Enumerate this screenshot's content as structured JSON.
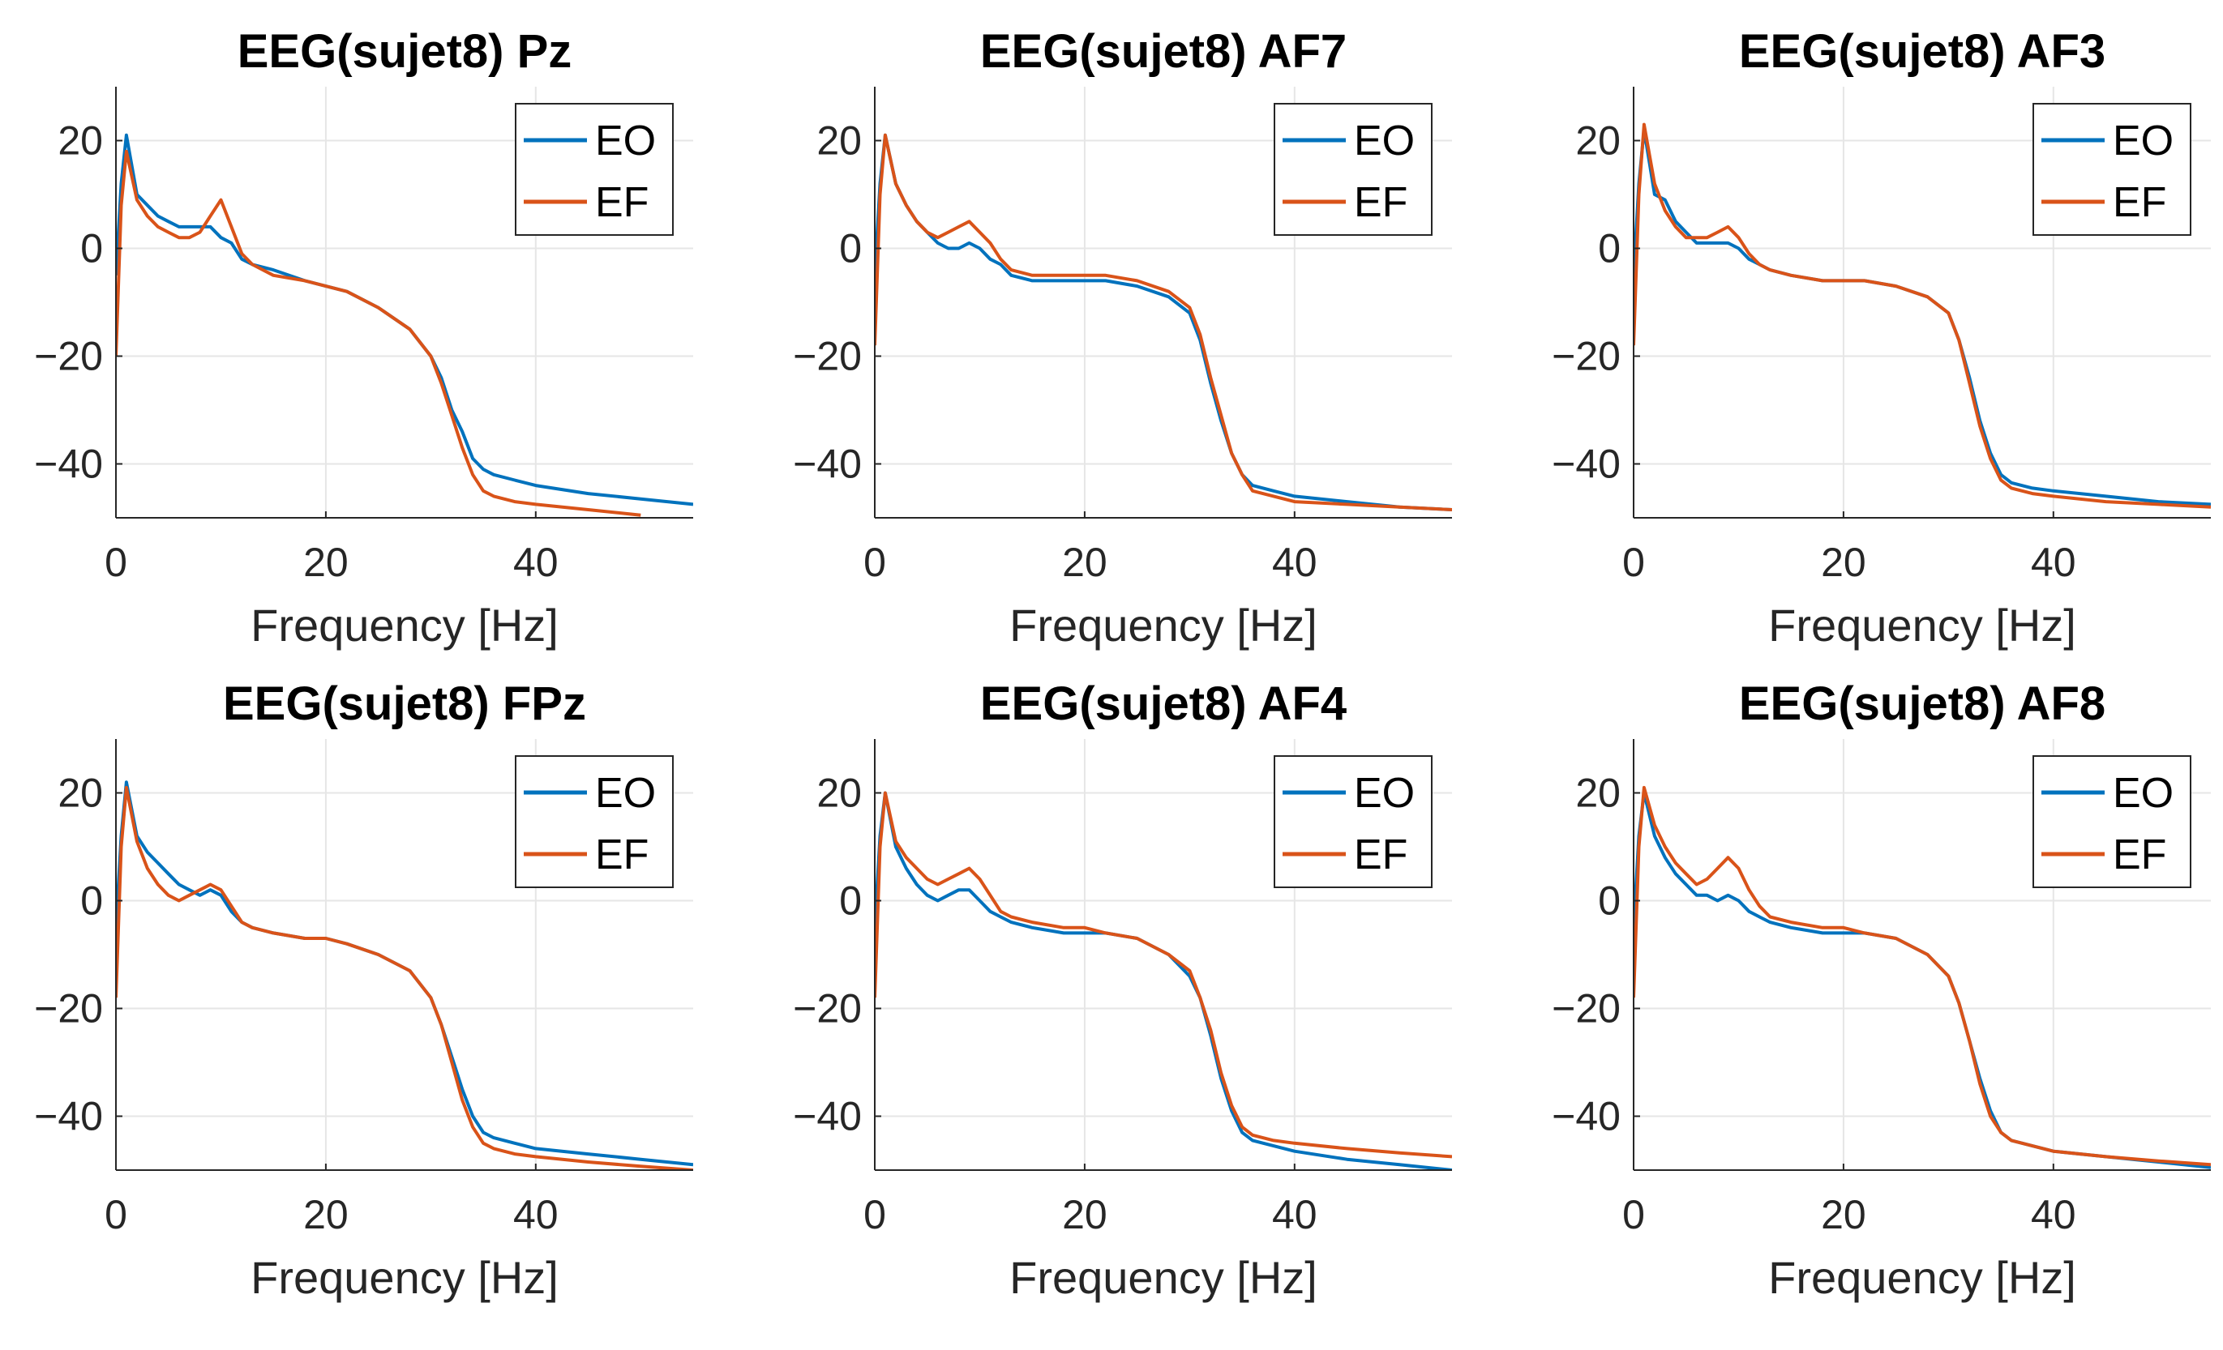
{
  "colors": {
    "EO": "#0072BD",
    "EF": "#D95319",
    "grid": "#e6e6e6",
    "axis": "#262626"
  },
  "chart_data": [
    {
      "type": "line",
      "title": "EEG(sujet8) Pz",
      "xlabel": "Frequency [Hz]",
      "ylabel": "",
      "xlim": [
        0,
        55
      ],
      "ylim": [
        -50,
        30
      ],
      "xticks": [
        "0",
        "20",
        "40"
      ],
      "xtick_values": [
        0,
        20,
        40
      ],
      "yticks": [
        "20",
        "0",
        "−20",
        "−40"
      ],
      "ytick_values": [
        20,
        0,
        -20,
        -40
      ],
      "grid": true,
      "legend_position": "top-right",
      "series": [
        {
          "name": "EO",
          "x": [
            0,
            0.5,
            1,
            2,
            3,
            4,
            5,
            6,
            7,
            8,
            9,
            10,
            11,
            12,
            13,
            15,
            18,
            20,
            22,
            25,
            28,
            30,
            31,
            32,
            33,
            34,
            35,
            36,
            38,
            40,
            45,
            50,
            55
          ],
          "y": [
            -5,
            12,
            21,
            10,
            8,
            6,
            5,
            4,
            4,
            4,
            4,
            2,
            1,
            -2,
            -3,
            -4,
            -6,
            -7,
            -8,
            -11,
            -15,
            -20,
            -24,
            -30,
            -34,
            -39,
            -41,
            -42,
            -43,
            -44,
            -45.5,
            -46.5,
            -47.5
          ]
        },
        {
          "name": "EF",
          "x": [
            0,
            0.5,
            1,
            2,
            3,
            4,
            5,
            6,
            7,
            8,
            9,
            10,
            11,
            12,
            13,
            15,
            18,
            20,
            22,
            25,
            28,
            30,
            31,
            32,
            33,
            34,
            35,
            36,
            38,
            40,
            45,
            50
          ],
          "y": [
            -20,
            8,
            18,
            9,
            6,
            4,
            3,
            2,
            2,
            3,
            6,
            9,
            4,
            -1,
            -3,
            -5,
            -6,
            -7,
            -8,
            -11,
            -15,
            -20,
            -25,
            -31,
            -37,
            -42,
            -45,
            -46,
            -47,
            -47.5,
            -48.5,
            -49.5
          ]
        }
      ]
    },
    {
      "type": "line",
      "title": "EEG(sujet8) AF7",
      "xlabel": "Frequency [Hz]",
      "ylabel": "",
      "xlim": [
        0,
        55
      ],
      "ylim": [
        -50,
        30
      ],
      "xticks": [
        "0",
        "20",
        "40"
      ],
      "xtick_values": [
        0,
        20,
        40
      ],
      "yticks": [
        "20",
        "0",
        "−20",
        "−40"
      ],
      "ytick_values": [
        20,
        0,
        -20,
        -40
      ],
      "grid": true,
      "legend_position": "top-right",
      "series": [
        {
          "name": "EO",
          "x": [
            0,
            0.5,
            1,
            2,
            3,
            4,
            5,
            6,
            7,
            8,
            9,
            10,
            11,
            12,
            13,
            15,
            18,
            20,
            22,
            25,
            28,
            30,
            31,
            32,
            33,
            34,
            35,
            36,
            38,
            40,
            45,
            50,
            55
          ],
          "y": [
            -5,
            12,
            21,
            12,
            8,
            5,
            3,
            1,
            0,
            0,
            1,
            0,
            -2,
            -3,
            -5,
            -6,
            -6,
            -6,
            -6,
            -7,
            -9,
            -12,
            -17,
            -25,
            -32,
            -38,
            -42,
            -44,
            -45,
            -46,
            -47,
            -48,
            -48.5
          ]
        },
        {
          "name": "EF",
          "x": [
            0,
            0.5,
            1,
            2,
            3,
            4,
            5,
            6,
            7,
            8,
            9,
            10,
            11,
            12,
            13,
            15,
            18,
            20,
            22,
            25,
            28,
            30,
            31,
            32,
            33,
            34,
            35,
            36,
            38,
            40,
            45,
            50,
            55
          ],
          "y": [
            -18,
            10,
            21,
            12,
            8,
            5,
            3,
            2,
            3,
            4,
            5,
            3,
            1,
            -2,
            -4,
            -5,
            -5,
            -5,
            -5,
            -6,
            -8,
            -11,
            -16,
            -24,
            -31,
            -38,
            -42,
            -45,
            -46,
            -47,
            -47.5,
            -48,
            -48.5
          ]
        }
      ]
    },
    {
      "type": "line",
      "title": "EEG(sujet8) AF3",
      "xlabel": "Frequency [Hz]",
      "ylabel": "",
      "xlim": [
        0,
        55
      ],
      "ylim": [
        -50,
        30
      ],
      "xticks": [
        "0",
        "20",
        "40"
      ],
      "xtick_values": [
        0,
        20,
        40
      ],
      "yticks": [
        "20",
        "0",
        "−20",
        "−40"
      ],
      "ytick_values": [
        20,
        0,
        -20,
        -40
      ],
      "grid": true,
      "legend_position": "top-right",
      "series": [
        {
          "name": "EO",
          "x": [
            0,
            0.5,
            1,
            2,
            3,
            4,
            5,
            6,
            7,
            8,
            9,
            10,
            11,
            12,
            13,
            15,
            18,
            20,
            22,
            25,
            28,
            30,
            31,
            32,
            33,
            34,
            35,
            36,
            38,
            40,
            45,
            50,
            55
          ],
          "y": [
            -5,
            12,
            22,
            10,
            9,
            5,
            3,
            1,
            1,
            1,
            1,
            0,
            -2,
            -3,
            -4,
            -5,
            -6,
            -6,
            -6,
            -7,
            -9,
            -12,
            -17,
            -24,
            -32,
            -38,
            -42,
            -43.5,
            -44.5,
            -45,
            -46,
            -47,
            -47.5
          ]
        },
        {
          "name": "EF",
          "x": [
            0,
            0.5,
            1,
            2,
            3,
            4,
            5,
            6,
            7,
            8,
            9,
            10,
            11,
            12,
            13,
            15,
            18,
            20,
            22,
            25,
            28,
            30,
            31,
            32,
            33,
            34,
            35,
            36,
            38,
            40,
            45,
            50,
            55
          ],
          "y": [
            -18,
            10,
            23,
            12,
            7,
            4,
            2,
            2,
            2,
            3,
            4,
            2,
            -1,
            -3,
            -4,
            -5,
            -6,
            -6,
            -6,
            -7,
            -9,
            -12,
            -17,
            -25,
            -33,
            -39,
            -43,
            -44.5,
            -45.5,
            -46,
            -47,
            -47.5,
            -48
          ]
        }
      ]
    },
    {
      "type": "line",
      "title": "EEG(sujet8) FPz",
      "xlabel": "Frequency [Hz]",
      "ylabel": "",
      "xlim": [
        0,
        55
      ],
      "ylim": [
        -50,
        30
      ],
      "xticks": [
        "0",
        "20",
        "40"
      ],
      "xtick_values": [
        0,
        20,
        40
      ],
      "yticks": [
        "20",
        "0",
        "−20",
        "−40"
      ],
      "ytick_values": [
        20,
        0,
        -20,
        -40
      ],
      "grid": true,
      "legend_position": "top-right",
      "series": [
        {
          "name": "EO",
          "x": [
            0,
            0.5,
            1,
            2,
            3,
            4,
            5,
            6,
            7,
            8,
            9,
            10,
            11,
            12,
            13,
            15,
            18,
            20,
            22,
            25,
            28,
            30,
            31,
            32,
            33,
            34,
            35,
            36,
            38,
            40,
            45,
            50,
            55
          ],
          "y": [
            -5,
            12,
            22,
            12,
            9,
            7,
            5,
            3,
            2,
            1,
            2,
            1,
            -2,
            -4,
            -5,
            -6,
            -7,
            -7,
            -8,
            -10,
            -13,
            -18,
            -23,
            -29,
            -35,
            -40,
            -43,
            -44,
            -45,
            -46,
            -47,
            -48,
            -49
          ]
        },
        {
          "name": "EF",
          "x": [
            0,
            0.5,
            1,
            2,
            3,
            4,
            5,
            6,
            7,
            8,
            9,
            10,
            11,
            12,
            13,
            15,
            18,
            20,
            22,
            25,
            28,
            30,
            31,
            32,
            33,
            34,
            35,
            36,
            38,
            40,
            45,
            50,
            55
          ],
          "y": [
            -18,
            10,
            21,
            11,
            6,
            3,
            1,
            0,
            1,
            2,
            3,
            2,
            -1,
            -4,
            -5,
            -6,
            -7,
            -7,
            -8,
            -10,
            -13,
            -18,
            -23,
            -30,
            -37,
            -42,
            -45,
            -46,
            -47,
            -47.5,
            -48.5,
            -49.3,
            -50
          ]
        }
      ]
    },
    {
      "type": "line",
      "title": "EEG(sujet8) AF4",
      "xlabel": "Frequency [Hz]",
      "ylabel": "",
      "xlim": [
        0,
        55
      ],
      "ylim": [
        -50,
        30
      ],
      "xticks": [
        "0",
        "20",
        "40"
      ],
      "xtick_values": [
        0,
        20,
        40
      ],
      "yticks": [
        "20",
        "0",
        "−20",
        "−40"
      ],
      "ytick_values": [
        20,
        0,
        -20,
        -40
      ],
      "grid": true,
      "legend_position": "top-right",
      "series": [
        {
          "name": "EO",
          "x": [
            0,
            0.5,
            1,
            2,
            3,
            4,
            5,
            6,
            7,
            8,
            9,
            10,
            11,
            12,
            13,
            15,
            18,
            20,
            22,
            25,
            28,
            30,
            31,
            32,
            33,
            34,
            35,
            36,
            38,
            40,
            45,
            50,
            55
          ],
          "y": [
            -5,
            12,
            20,
            10,
            6,
            3,
            1,
            0,
            1,
            2,
            2,
            0,
            -2,
            -3,
            -4,
            -5,
            -6,
            -6,
            -6,
            -7,
            -10,
            -14,
            -18,
            -25,
            -33,
            -39,
            -43,
            -44.5,
            -45.5,
            -46.5,
            -48,
            -49,
            -50
          ]
        },
        {
          "name": "EF",
          "x": [
            0,
            0.5,
            1,
            2,
            3,
            4,
            5,
            6,
            7,
            8,
            9,
            10,
            11,
            12,
            13,
            15,
            18,
            20,
            22,
            25,
            28,
            30,
            31,
            32,
            33,
            34,
            35,
            36,
            38,
            40,
            45,
            50,
            55
          ],
          "y": [
            -18,
            10,
            20,
            11,
            8,
            6,
            4,
            3,
            4,
            5,
            6,
            4,
            1,
            -2,
            -3,
            -4,
            -5,
            -5,
            -6,
            -7,
            -10,
            -13,
            -18,
            -24,
            -32,
            -38,
            -42,
            -43.5,
            -44.5,
            -45,
            -46,
            -46.8,
            -47.5
          ]
        }
      ]
    },
    {
      "type": "line",
      "title": "EEG(sujet8) AF8",
      "xlabel": "Frequency [Hz]",
      "ylabel": "",
      "xlim": [
        0,
        55
      ],
      "ylim": [
        -50,
        30
      ],
      "xticks": [
        "0",
        "20",
        "40"
      ],
      "xtick_values": [
        0,
        20,
        40
      ],
      "yticks": [
        "20",
        "0",
        "−20",
        "−40"
      ],
      "ytick_values": [
        20,
        0,
        -20,
        -40
      ],
      "grid": true,
      "legend_position": "top-right",
      "series": [
        {
          "name": "EO",
          "x": [
            0,
            0.5,
            1,
            2,
            3,
            4,
            5,
            6,
            7,
            8,
            9,
            10,
            11,
            12,
            13,
            15,
            18,
            20,
            22,
            25,
            28,
            30,
            31,
            32,
            33,
            34,
            35,
            36,
            38,
            40,
            45,
            50,
            55
          ],
          "y": [
            -5,
            12,
            20,
            12,
            8,
            5,
            3,
            1,
            1,
            0,
            1,
            0,
            -2,
            -3,
            -4,
            -5,
            -6,
            -6,
            -6,
            -7,
            -10,
            -14,
            -19,
            -26,
            -33,
            -39,
            -43,
            -44.5,
            -45.5,
            -46.5,
            -47.5,
            -48.5,
            -49.5
          ]
        },
        {
          "name": "EF",
          "x": [
            0,
            0.5,
            1,
            2,
            3,
            4,
            5,
            6,
            7,
            8,
            9,
            10,
            11,
            12,
            13,
            15,
            18,
            20,
            22,
            25,
            28,
            30,
            31,
            32,
            33,
            34,
            35,
            36,
            38,
            40,
            45,
            50,
            55
          ],
          "y": [
            -18,
            10,
            21,
            14,
            10,
            7,
            5,
            3,
            4,
            6,
            8,
            6,
            2,
            -1,
            -3,
            -4,
            -5,
            -5,
            -6,
            -7,
            -10,
            -14,
            -19,
            -26,
            -34,
            -40,
            -43,
            -44.5,
            -45.5,
            -46.5,
            -47.5,
            -48.3,
            -49
          ]
        }
      ]
    }
  ]
}
